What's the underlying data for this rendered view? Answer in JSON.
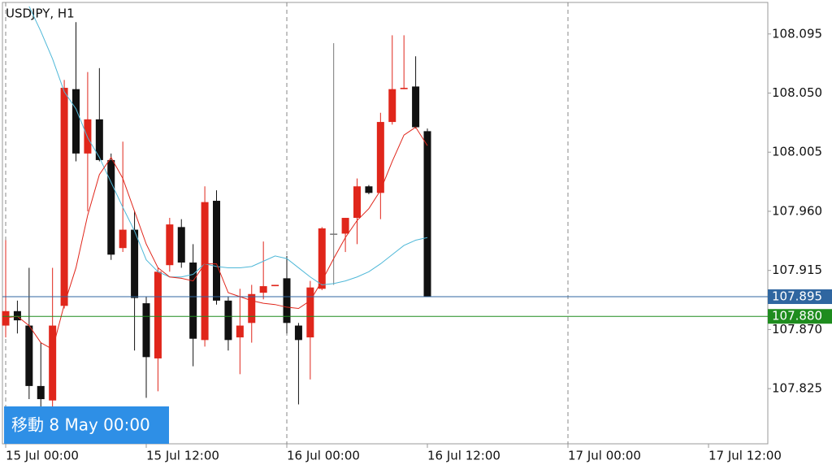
{
  "chart_data": {
    "type": "candlestick",
    "title": "USDJPY, H1",
    "ylim": [
      107.783,
      108.119
    ],
    "yticks": [
      108.095,
      {
        "value": 108.05,
        "label": "108.050"
      },
      108.005,
      {
        "value": 107.96,
        "label": "107.960"
      },
      107.915,
      {
        "value": 107.87,
        "label": "107.870"
      },
      107.825
    ],
    "x_labels": [
      "15 Jul 00:00",
      "15 Jul 12:00",
      "16 Jul 00:00",
      "16 Jul 12:00",
      "17 Jul 00:00",
      "17 Jul 12:00"
    ],
    "up_color": "#e0261b",
    "down_color": "#111111",
    "candles": {
      "open": [
        107.873,
        107.884,
        107.873,
        107.827,
        107.816,
        107.888,
        108.053,
        108.004,
        108.03,
        107.999,
        107.932,
        107.946,
        107.89,
        107.848,
        107.919,
        107.948,
        107.921,
        107.862,
        107.968,
        107.892,
        107.864,
        107.875,
        107.898,
        107.903,
        107.909,
        107.873,
        107.864,
        107.901,
        107.943,
        107.943,
        107.955,
        107.979,
        107.974,
        108.028,
        108.053,
        108.055,
        108.021
      ],
      "high": [
        107.938,
        107.892,
        107.917,
        107.86,
        107.917,
        108.06,
        108.104,
        108.066,
        108.069,
        108.004,
        108.013,
        107.96,
        107.895,
        107.917,
        107.955,
        107.954,
        107.935,
        107.979,
        107.976,
        107.895,
        107.901,
        107.904,
        107.937,
        107.904,
        107.926,
        107.875,
        107.907,
        107.948,
        108.088,
        107.955,
        107.985,
        107.98,
        108.035,
        108.094,
        108.094,
        108.078,
        108.023
      ],
      "low": [
        107.864,
        107.867,
        107.817,
        107.811,
        107.811,
        107.886,
        107.998,
        107.96,
        107.998,
        107.923,
        107.929,
        107.854,
        107.818,
        107.823,
        107.914,
        107.917,
        107.842,
        107.857,
        107.889,
        107.854,
        107.836,
        107.86,
        107.893,
        107.903,
        107.867,
        107.813,
        107.832,
        107.9,
        107.904,
        107.929,
        107.935,
        107.973,
        107.954,
        108.026,
        108.053,
        108.023,
        107.895
      ],
      "close": [
        107.884,
        107.877,
        107.827,
        107.817,
        107.873,
        108.054,
        108.004,
        108.03,
        107.999,
        107.927,
        107.946,
        107.894,
        107.849,
        107.914,
        107.95,
        107.921,
        107.863,
        107.967,
        107.892,
        107.862,
        107.873,
        107.897,
        107.903,
        107.904,
        107.875,
        107.862,
        107.902,
        107.947,
        107.943,
        107.955,
        107.979,
        107.974,
        108.028,
        108.053,
        108.054,
        108.024,
        107.895
      ]
    },
    "moving_averages": [
      {
        "color": "#4fb8d8",
        "values": [
          null,
          null,
          108.116,
          108.097,
          108.076,
          108.051,
          108.038,
          108.016,
          108.001,
          107.982,
          107.963,
          107.945,
          107.923,
          107.914,
          107.91,
          107.91,
          107.912,
          107.92,
          107.918,
          107.917,
          107.917,
          107.918,
          107.922,
          107.926,
          107.924,
          107.917,
          107.91,
          107.904,
          107.905,
          107.907,
          107.91,
          107.914,
          107.92,
          107.927,
          107.934,
          107.938,
          107.94
        ]
      },
      {
        "color": "#e0261b",
        "values": [
          107.879,
          107.88,
          107.873,
          107.86,
          107.855,
          107.889,
          107.917,
          107.957,
          107.988,
          108.001,
          107.985,
          107.96,
          107.935,
          107.917,
          107.91,
          107.909,
          107.907,
          107.92,
          107.92,
          107.898,
          107.895,
          107.892,
          107.89,
          107.889,
          107.887,
          107.886,
          107.892,
          107.907,
          107.924,
          107.94,
          107.953,
          107.962,
          107.976,
          107.998,
          108.018,
          108.024,
          108.01
        ]
      }
    ],
    "price_lines": [
      {
        "value": 107.895,
        "color": "#2f66a0"
      },
      {
        "value": 107.88,
        "label": "107.880",
        "color": "#1e8c1e"
      }
    ],
    "overlay_button": "移動 8 May 00:00"
  }
}
